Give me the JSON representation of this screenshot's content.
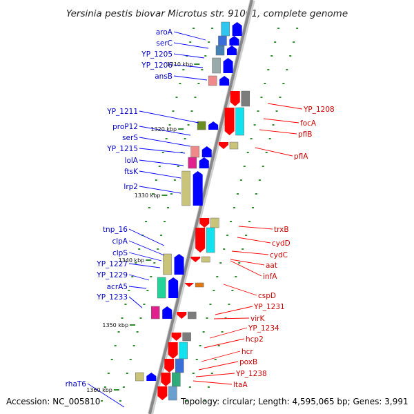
{
  "title": "Yersinia pestis biovar Microtus str. 91001, complete genome",
  "footer": {
    "accession": "Accession: NC_005810",
    "summary": "Topology: circular; Length: 4,595,065 bp; Genes: 3,991"
  },
  "ticks": [
    "1310 kbp",
    "1320 kbp",
    "1330 kbp",
    "1340 kbp",
    "1350 kbp",
    "1360 kbp"
  ],
  "genes_forward": [
    "aroA",
    "serC",
    "YP_1205",
    "YP_1206",
    "ansB",
    "YP_1211",
    "proP12",
    "serS",
    "YP_1215",
    "lolA",
    "ftsK",
    "lrp2",
    "tnp_16",
    "clpA",
    "clpS",
    "YP_1227",
    "YP_1229",
    "acrA5",
    "YP_1233",
    "rhaT6"
  ],
  "genes_reverse": [
    "YP_1208",
    "focA",
    "pflB",
    "pflA",
    "trxB",
    "cydD",
    "cydC",
    "aat",
    "infA",
    "cspD",
    "YP_1231",
    "virK",
    "YP_1234",
    "hcp2",
    "hcr",
    "poxB",
    "YP_1238",
    "ltaA"
  ],
  "colors": {
    "forward": "#0000ff",
    "reverse": "#ff0000",
    "backbone": "#8c8c8c",
    "tick_dots": "#2e8b2e"
  }
}
